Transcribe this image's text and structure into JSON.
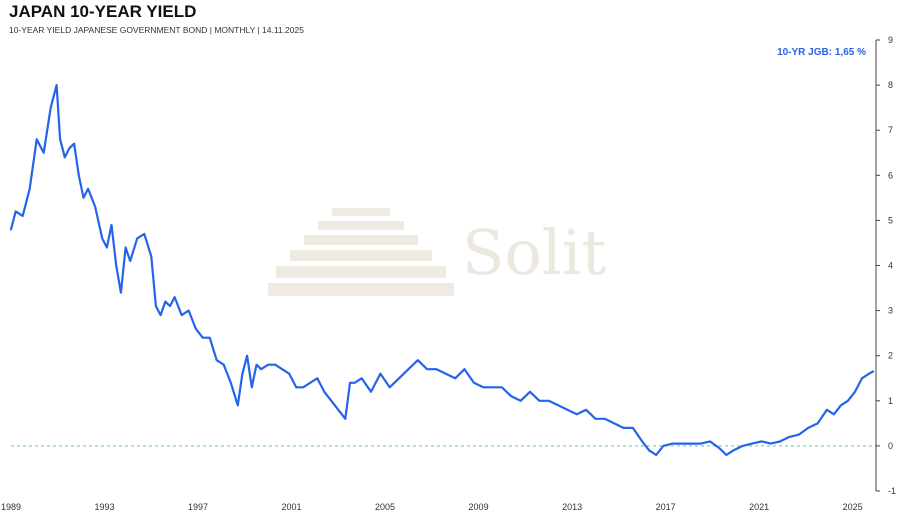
{
  "header": {
    "title": "JAPAN 10-YEAR YIELD",
    "subtitle": "10-YEAR YIELD JAPANESE GOVERNMENT BOND | MONTHLY | 14.11.2025"
  },
  "watermark": {
    "text": "Solit"
  },
  "colors": {
    "line": "#2563eb",
    "zero_line": "#4ade80",
    "annotation": "#2563eb",
    "grid": "#e5e7eb",
    "axis": "#444444"
  },
  "chart_data": {
    "type": "line",
    "title": "JAPAN 10-YEAR YIELD",
    "annotation": "10-YR JGB: 1,65 %",
    "x_ticks": [
      "1989",
      "1993",
      "1997",
      "2001",
      "2005",
      "2009",
      "2013",
      "2017",
      "2021",
      "2025"
    ],
    "y_ticks": [
      "-1",
      "0",
      "1",
      "2",
      "3",
      "4",
      "5",
      "6",
      "7",
      "8",
      "9"
    ],
    "xlim": [
      1989.0,
      2026.0
    ],
    "ylim": [
      -1,
      9
    ],
    "y_axis_side": "right",
    "grid": false,
    "reference_line": {
      "y": 0,
      "style": "dashed"
    },
    "series": [
      {
        "x": [
          1989.0,
          1989.2,
          1989.5,
          1989.8,
          1990.1,
          1990.4,
          1990.7,
          1990.95,
          1991.1,
          1991.3,
          1991.5,
          1991.7,
          1991.9,
          1992.1,
          1992.3,
          1992.6,
          1992.9,
          1993.1,
          1993.3,
          1993.5,
          1993.7,
          1993.9,
          1994.1,
          1994.4,
          1994.7,
          1995.0,
          1995.2,
          1995.4,
          1995.6,
          1995.8,
          1996.0,
          1996.3,
          1996.6,
          1996.9,
          1997.2,
          1997.5,
          1997.8,
          1998.1,
          1998.4,
          1998.7,
          1998.9,
          1999.1,
          1999.3,
          1999.5,
          1999.7,
          2000.0,
          2000.3,
          2000.6,
          2000.9,
          2001.2,
          2001.5,
          2001.8,
          2002.1,
          2002.4,
          2002.7,
          2003.0,
          2003.3,
          2003.5,
          2003.7,
          2004.0,
          2004.4,
          2004.8,
          2005.2,
          2005.6,
          2006.0,
          2006.4,
          2006.8,
          2007.2,
          2007.6,
          2008.0,
          2008.4,
          2008.8,
          2009.2,
          2009.6,
          2010.0,
          2010.4,
          2010.8,
          2011.2,
          2011.6,
          2012.0,
          2012.4,
          2012.8,
          2013.2,
          2013.6,
          2014.0,
          2014.4,
          2014.8,
          2015.2,
          2015.6,
          2016.0,
          2016.3,
          2016.6,
          2016.9,
          2017.3,
          2017.7,
          2018.1,
          2018.5,
          2018.9,
          2019.3,
          2019.6,
          2019.9,
          2020.3,
          2020.7,
          2021.1,
          2021.5,
          2021.9,
          2022.3,
          2022.7,
          2023.1,
          2023.5,
          2023.9,
          2024.2,
          2024.5,
          2024.8,
          2025.1,
          2025.4,
          2025.7,
          2025.87
        ],
        "values": [
          4.8,
          5.2,
          5.1,
          5.7,
          6.8,
          6.5,
          7.5,
          8.0,
          6.8,
          6.4,
          6.6,
          6.7,
          6.0,
          5.5,
          5.7,
          5.3,
          4.6,
          4.4,
          4.9,
          4.0,
          3.4,
          4.4,
          4.1,
          4.6,
          4.7,
          4.2,
          3.1,
          2.9,
          3.2,
          3.1,
          3.3,
          2.9,
          3.0,
          2.6,
          2.4,
          2.4,
          1.9,
          1.8,
          1.4,
          0.9,
          1.6,
          2.0,
          1.3,
          1.8,
          1.7,
          1.8,
          1.8,
          1.7,
          1.6,
          1.3,
          1.3,
          1.4,
          1.5,
          1.2,
          1.0,
          0.8,
          0.6,
          1.4,
          1.4,
          1.5,
          1.2,
          1.6,
          1.3,
          1.5,
          1.7,
          1.9,
          1.7,
          1.7,
          1.6,
          1.5,
          1.7,
          1.4,
          1.3,
          1.3,
          1.3,
          1.1,
          1.0,
          1.2,
          1.0,
          1.0,
          0.9,
          0.8,
          0.7,
          0.8,
          0.6,
          0.6,
          0.5,
          0.4,
          0.4,
          0.1,
          -0.1,
          -0.2,
          0.0,
          0.05,
          0.05,
          0.05,
          0.05,
          0.1,
          -0.05,
          -0.2,
          -0.1,
          0.0,
          0.05,
          0.1,
          0.05,
          0.1,
          0.2,
          0.25,
          0.4,
          0.5,
          0.8,
          0.7,
          0.9,
          1.0,
          1.2,
          1.5,
          1.6,
          1.65
        ]
      }
    ]
  }
}
